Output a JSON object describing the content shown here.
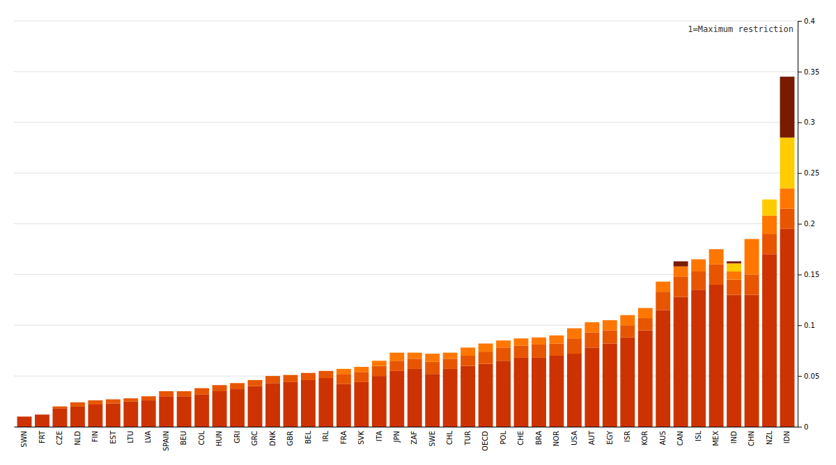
{
  "chart_data": {
    "type": "bar",
    "stacked": true,
    "categories": [
      "SWN",
      "FRT",
      "CZE",
      "NLD",
      "FIN",
      "EST",
      "LTU",
      "LVA",
      "SPAIN",
      "BEU",
      "COL",
      "HUN",
      "GRI",
      "GRC",
      "DNK",
      "GBR",
      "BEL",
      "IRL",
      "FRA",
      "SVK",
      "ITA",
      "JPN",
      "ZAF",
      "SWE",
      "CHL",
      "TUR",
      "OECD",
      "POL",
      "CHE",
      "BRA",
      "NOR",
      "USA",
      "AUT",
      "EGY",
      "ISR",
      "KOR",
      "AUS",
      "CAN",
      "ISL",
      "MEX",
      "IND",
      "CHN",
      "NZL",
      "IDN"
    ],
    "series": [
      {
        "color": "#cc3300",
        "values": [
          0.01,
          0.012,
          0.018,
          0.02,
          0.022,
          0.023,
          0.025,
          0.026,
          0.03,
          0.03,
          0.032,
          0.035,
          0.037,
          0.04,
          0.043,
          0.044,
          0.046,
          0.048,
          0.042,
          0.044,
          0.05,
          0.055,
          0.057,
          0.052,
          0.057,
          0.06,
          0.062,
          0.065,
          0.068,
          0.068,
          0.07,
          0.072,
          0.078,
          0.082,
          0.088,
          0.095,
          0.115,
          0.128,
          0.135,
          0.14,
          0.13,
          0.13,
          0.17,
          0.195
        ]
      },
      {
        "color": "#e85500",
        "values": [
          0.0,
          0.0,
          0.002,
          0.004,
          0.004,
          0.004,
          0.003,
          0.004,
          0.005,
          0.005,
          0.006,
          0.006,
          0.006,
          0.006,
          0.007,
          0.007,
          0.007,
          0.007,
          0.01,
          0.01,
          0.01,
          0.01,
          0.01,
          0.012,
          0.01,
          0.01,
          0.012,
          0.013,
          0.012,
          0.013,
          0.012,
          0.015,
          0.015,
          0.013,
          0.012,
          0.012,
          0.018,
          0.02,
          0.018,
          0.02,
          0.015,
          0.02,
          0.02,
          0.02
        ]
      },
      {
        "color": "#ff7700",
        "values": [
          0.0,
          0.0,
          0.0,
          0.0,
          0.0,
          0.0,
          0.0,
          0.0,
          0.0,
          0.0,
          0.0,
          0.0,
          0.0,
          0.0,
          0.0,
          0.0,
          0.0,
          0.0,
          0.005,
          0.005,
          0.005,
          0.008,
          0.006,
          0.008,
          0.006,
          0.008,
          0.008,
          0.007,
          0.007,
          0.007,
          0.008,
          0.01,
          0.01,
          0.01,
          0.01,
          0.01,
          0.01,
          0.01,
          0.012,
          0.015,
          0.008,
          0.035,
          0.018,
          0.02
        ]
      },
      {
        "color": "#ffcc00",
        "values": [
          0.0,
          0.0,
          0.0,
          0.0,
          0.0,
          0.0,
          0.0,
          0.0,
          0.0,
          0.0,
          0.0,
          0.0,
          0.0,
          0.0,
          0.0,
          0.0,
          0.0,
          0.0,
          0.0,
          0.0,
          0.0,
          0.0,
          0.0,
          0.0,
          0.0,
          0.0,
          0.0,
          0.0,
          0.0,
          0.0,
          0.0,
          0.0,
          0.0,
          0.0,
          0.0,
          0.0,
          0.0,
          0.0,
          0.0,
          0.0,
          0.008,
          0.0,
          0.016,
          0.05
        ]
      },
      {
        "color": "#7a1a00",
        "values": [
          0.0,
          0.0,
          0.0,
          0.0,
          0.0,
          0.0,
          0.0,
          0.0,
          0.0,
          0.0,
          0.0,
          0.0,
          0.0,
          0.0,
          0.0,
          0.0,
          0.0,
          0.0,
          0.0,
          0.0,
          0.0,
          0.0,
          0.0,
          0.0,
          0.0,
          0.0,
          0.0,
          0.0,
          0.0,
          0.0,
          0.0,
          0.0,
          0.0,
          0.0,
          0.0,
          0.0,
          0.0,
          0.005,
          0.0,
          0.0,
          0.002,
          0.0,
          0.0,
          0.06
        ]
      }
    ],
    "ylim": [
      0,
      0.4
    ],
    "yticks": [
      0,
      0.05,
      0.1,
      0.15,
      0.2,
      0.25,
      0.3,
      0.35,
      0.4
    ],
    "grid": true,
    "annotation": "1=Maximum restriction"
  }
}
